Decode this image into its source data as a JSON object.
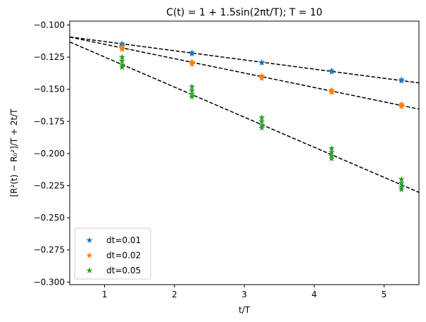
{
  "chart_data": {
    "type": "scatter",
    "title": "C(t) = 1 + 1.5sin(2πt/T); T = 10",
    "xlabel": "t/T",
    "ylabel": "[R²(t) − R₀²]/T + 2t/T",
    "xlim": [
      0.5,
      5.5
    ],
    "ylim": [
      -0.302,
      -0.097
    ],
    "xticks": [
      1,
      2,
      3,
      4,
      5
    ],
    "yticks": [
      -0.1,
      -0.125,
      -0.15,
      -0.175,
      -0.2,
      -0.225,
      -0.25,
      -0.275,
      -0.3
    ],
    "grid": false,
    "legend_position": "lower-left",
    "series": [
      {
        "name": "dt=0.01",
        "color": "#1f77b4",
        "marker": "star",
        "points": [
          {
            "x": 1.25,
            "y": -0.1145
          },
          {
            "x": 1.25,
            "y": -0.1155
          },
          {
            "x": 1.25,
            "y": -0.1165
          },
          {
            "x": 2.25,
            "y": -0.1215
          },
          {
            "x": 2.25,
            "y": -0.1225
          },
          {
            "x": 3.25,
            "y": -0.129
          },
          {
            "x": 3.25,
            "y": -0.1295
          },
          {
            "x": 4.25,
            "y": -0.1355
          },
          {
            "x": 4.25,
            "y": -0.1365
          },
          {
            "x": 5.25,
            "y": -0.1425
          },
          {
            "x": 5.25,
            "y": -0.1435
          }
        ],
        "fit": {
          "slope": -0.00715,
          "intercept": -0.10572
        }
      },
      {
        "name": "dt=0.02",
        "color": "#ff7f0e",
        "marker": "star",
        "points": [
          {
            "x": 1.25,
            "y": -0.117
          },
          {
            "x": 1.25,
            "y": -0.118
          },
          {
            "x": 1.25,
            "y": -0.119
          },
          {
            "x": 2.25,
            "y": -0.1285
          },
          {
            "x": 2.25,
            "y": -0.1295
          },
          {
            "x": 2.25,
            "y": -0.1305
          },
          {
            "x": 3.25,
            "y": -0.1395
          },
          {
            "x": 3.25,
            "y": -0.1405
          },
          {
            "x": 3.25,
            "y": -0.1415
          },
          {
            "x": 4.25,
            "y": -0.1505
          },
          {
            "x": 4.25,
            "y": -0.1515
          },
          {
            "x": 4.25,
            "y": -0.1525
          },
          {
            "x": 5.25,
            "y": -0.1615
          },
          {
            "x": 5.25,
            "y": -0.1625
          },
          {
            "x": 5.25,
            "y": -0.1635
          }
        ],
        "fit": {
          "slope": -0.0112,
          "intercept": -0.1038
        }
      },
      {
        "name": "dt=0.05",
        "color": "#2ca02c",
        "marker": "star",
        "points": [
          {
            "x": 1.25,
            "y": -0.125
          },
          {
            "x": 1.25,
            "y": -0.128
          },
          {
            "x": 1.25,
            "y": -0.131
          },
          {
            "x": 1.25,
            "y": -0.133
          },
          {
            "x": 2.25,
            "y": -0.148
          },
          {
            "x": 2.25,
            "y": -0.151
          },
          {
            "x": 2.25,
            "y": -0.154
          },
          {
            "x": 2.25,
            "y": -0.156
          },
          {
            "x": 3.25,
            "y": -0.172
          },
          {
            "x": 3.25,
            "y": -0.175
          },
          {
            "x": 3.25,
            "y": -0.178
          },
          {
            "x": 3.25,
            "y": -0.18
          },
          {
            "x": 4.25,
            "y": -0.196
          },
          {
            "x": 4.25,
            "y": -0.199
          },
          {
            "x": 4.25,
            "y": -0.202
          },
          {
            "x": 4.25,
            "y": -0.204
          },
          {
            "x": 5.25,
            "y": -0.22
          },
          {
            "x": 5.25,
            "y": -0.223
          },
          {
            "x": 5.25,
            "y": -0.226
          },
          {
            "x": 5.25,
            "y": -0.228
          }
        ],
        "fit": {
          "slope": -0.0234,
          "intercept": -0.1015
        }
      }
    ]
  }
}
